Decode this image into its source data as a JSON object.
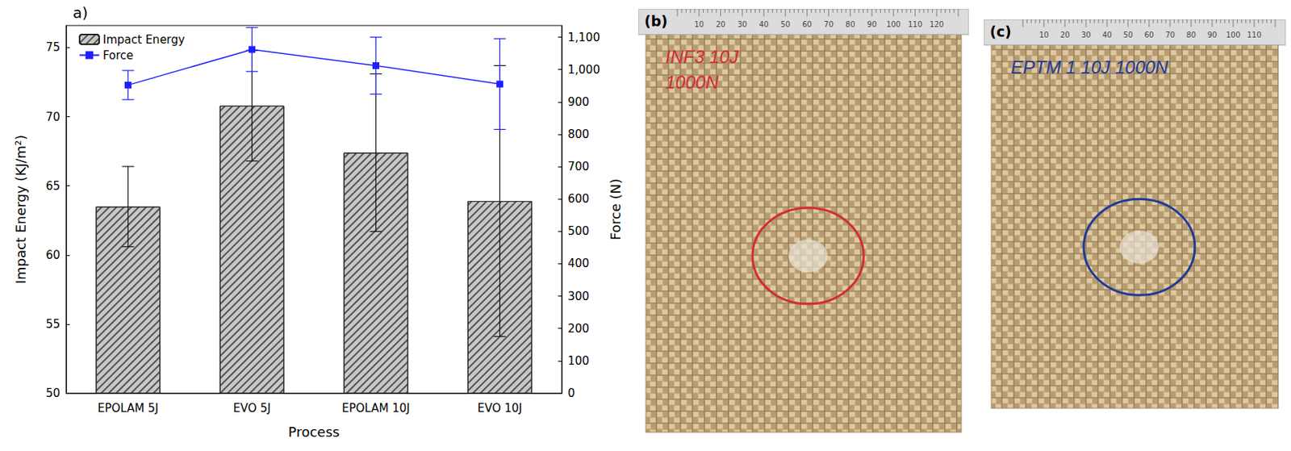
{
  "chart_data": {
    "type": "bar",
    "title": "a)",
    "x_label": "Process",
    "y_label": "Impact Energy (KJ/m²)",
    "y2_label": "Force (N)",
    "categories": [
      "EPOLAM 5J",
      "EVO 5J",
      "EPOLAM 10J",
      "EVO 10J"
    ],
    "series": [
      {
        "name": "Impact Energy",
        "type": "bar",
        "color": "#c8c8c8",
        "values": [
          63.5,
          70.8,
          67.4,
          63.9
        ],
        "errors": [
          2.9,
          4.0,
          5.7,
          9.8
        ]
      },
      {
        "name": "Force",
        "type": "line",
        "color": "#1f1fff",
        "marker": "square",
        "axis": "y2",
        "values": [
          952,
          1062,
          1012,
          955
        ],
        "errors": [
          45,
          68,
          88,
          140
        ]
      }
    ],
    "ylim": [
      50,
      76.6
    ],
    "yticks": [
      50,
      55,
      60,
      65,
      70,
      75
    ],
    "y2lim": [
      0,
      1136
    ],
    "y2ticks": [
      0,
      100,
      200,
      300,
      400,
      500,
      600,
      700,
      800,
      900,
      1000,
      1100
    ],
    "grid": false,
    "legend": "upper left"
  },
  "photos": [
    {
      "label": "(b)",
      "note": [
        "INF3 10J",
        "1000N"
      ],
      "ring_color": "#d42a3a",
      "ruler": [
        10,
        20,
        30,
        40,
        50,
        60,
        70,
        80,
        90,
        100,
        110,
        120
      ]
    },
    {
      "label": "(c)",
      "note": [
        "EPTM 1 10J 1000N"
      ],
      "ring_color": "#1e3a9a",
      "ruler": [
        10,
        20,
        30,
        40,
        50,
        60,
        70,
        80,
        90,
        100,
        110
      ]
    }
  ]
}
